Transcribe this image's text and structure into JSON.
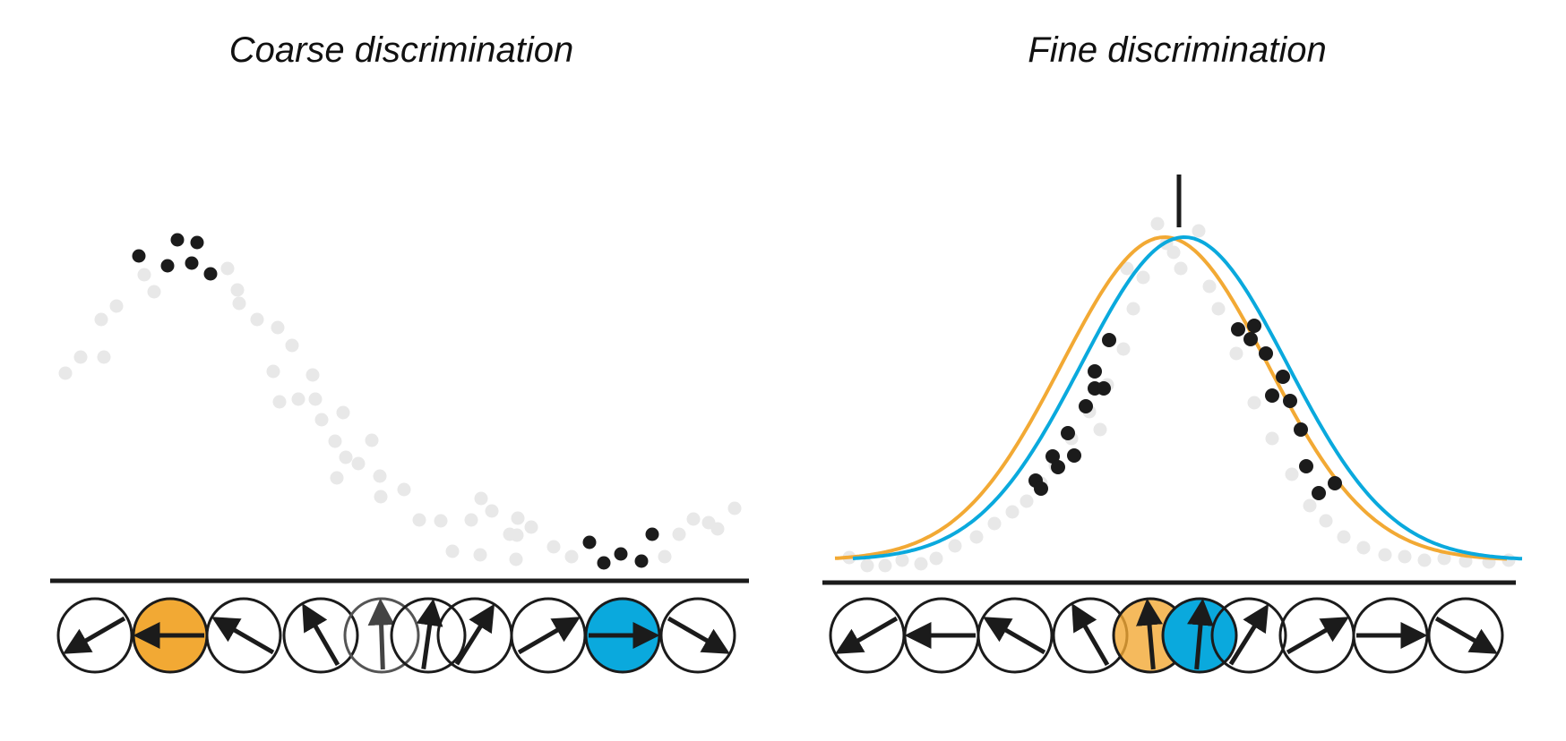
{
  "panels": {
    "coarse": {
      "title": "Coarse discrimination"
    },
    "fine": {
      "title": "Fine discrimination"
    }
  },
  "colors": {
    "orange": "#f2a934",
    "blue": "#0aa9dd",
    "dot_dark": "#1b1b1b",
    "dot_light": "#e8e8e8",
    "ink": "#1b1b1b"
  },
  "icons": {
    "neuron": "circle-with-arrow-icon"
  },
  "coarse_neurons": [
    {
      "angle": -150
    },
    {
      "angle": 180,
      "fill": "orange"
    },
    {
      "angle": 150
    },
    {
      "angle": 120
    },
    {
      "angle": 92,
      "faded": true
    },
    {
      "angle": 82
    },
    {
      "angle": 58
    },
    {
      "angle": 30
    },
    {
      "angle": 0,
      "fill": "blue"
    },
    {
      "angle": -30
    }
  ],
  "fine_neurons": [
    {
      "angle": -150
    },
    {
      "angle": 180
    },
    {
      "angle": 150
    },
    {
      "angle": 120
    },
    {
      "angle": 95,
      "fill": "orange",
      "translucent": true
    },
    {
      "angle": 85,
      "fill": "blue"
    },
    {
      "angle": 58
    },
    {
      "angle": 30
    },
    {
      "angle": 0
    },
    {
      "angle": -30
    }
  ]
}
